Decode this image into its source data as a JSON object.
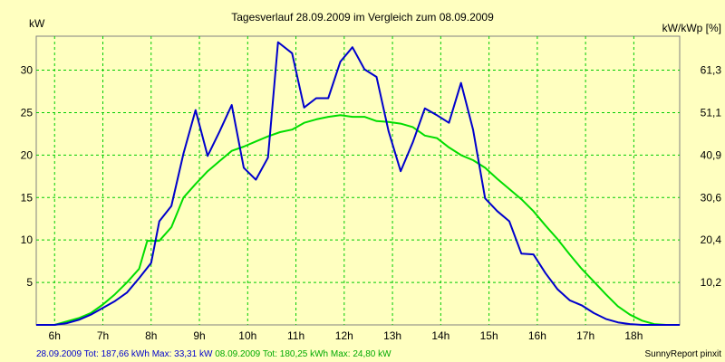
{
  "chart_data": {
    "type": "line",
    "title": "Tagesverlauf 28.09.2009 im Vergleich zum 08.09.2009",
    "ylabel_left": "kW",
    "ylabel_right": "kW/kWp [%]",
    "x_unit": "h",
    "xlim": [
      5.62,
      18.95
    ],
    "ylim": [
      0,
      34
    ],
    "x_ticks": [
      6,
      7,
      8,
      9,
      10,
      11,
      12,
      13,
      14,
      15,
      16,
      17,
      18
    ],
    "x_tick_labels": [
      "6h",
      "7h",
      "8h",
      "9h",
      "10h",
      "11h",
      "12h",
      "13h",
      "14h",
      "15h",
      "16h",
      "17h",
      "18h"
    ],
    "y_ticks_left": [
      5,
      10,
      15,
      20,
      25,
      30
    ],
    "y_tick_labels_left": [
      "5",
      "10",
      "15",
      "20",
      "25",
      "30"
    ],
    "y_ticks_right": [
      5,
      10,
      15,
      20,
      25,
      30
    ],
    "y_tick_labels_right": [
      "10,2",
      "20,4",
      "30,6",
      "40,9",
      "51,1",
      "61,3"
    ],
    "grid": true,
    "series": [
      {
        "name": "28.09.2009",
        "color": "#0000cc",
        "summary": "Tot: 187,66 kWh Max: 33,31 kW",
        "x": [
          5.62,
          6.0,
          6.25,
          6.5,
          6.75,
          7.0,
          7.25,
          7.5,
          7.75,
          8.0,
          8.17,
          8.42,
          8.67,
          8.92,
          9.17,
          9.42,
          9.67,
          9.92,
          10.17,
          10.42,
          10.63,
          10.92,
          11.17,
          11.42,
          11.67,
          11.92,
          12.17,
          12.42,
          12.67,
          12.92,
          13.17,
          13.42,
          13.67,
          13.92,
          14.17,
          14.42,
          14.67,
          14.92,
          15.17,
          15.42,
          15.67,
          15.92,
          16.17,
          16.42,
          16.67,
          16.92,
          17.17,
          17.42,
          17.67,
          17.92,
          18.17,
          18.42,
          18.67,
          18.95
        ],
        "y": [
          0,
          0,
          0.2,
          0.6,
          1.2,
          2.0,
          2.8,
          3.8,
          5.5,
          7.3,
          12.2,
          14.0,
          20.2,
          25.3,
          19.9,
          22.8,
          25.9,
          18.5,
          17.1,
          19.7,
          33.3,
          32.0,
          25.6,
          26.7,
          26.7,
          31.0,
          32.7,
          30.1,
          29.2,
          22.8,
          18.1,
          21.5,
          25.5,
          24.7,
          23.8,
          28.5,
          23.0,
          14.9,
          13.4,
          12.2,
          8.4,
          8.3,
          6.1,
          4.2,
          2.9,
          2.3,
          1.4,
          0.7,
          0.3,
          0.1,
          0,
          0,
          0,
          0
        ]
      },
      {
        "name": "08.09.2009",
        "color": "#00dd00",
        "summary": "Tot: 180,25 kWh Max: 24,80 kW",
        "x": [
          5.62,
          6.0,
          6.25,
          6.5,
          6.75,
          7.0,
          7.25,
          7.5,
          7.75,
          7.92,
          8.17,
          8.42,
          8.67,
          8.92,
          9.17,
          9.42,
          9.67,
          9.92,
          10.17,
          10.42,
          10.67,
          10.92,
          11.17,
          11.42,
          11.67,
          11.92,
          12.17,
          12.42,
          12.67,
          12.92,
          13.17,
          13.42,
          13.67,
          13.92,
          14.17,
          14.42,
          14.67,
          14.92,
          15.17,
          15.42,
          15.67,
          15.92,
          16.17,
          16.42,
          16.67,
          16.92,
          17.17,
          17.42,
          17.67,
          17.92,
          18.17,
          18.42,
          18.67,
          18.95
        ],
        "y": [
          0,
          0,
          0.4,
          0.8,
          1.4,
          2.4,
          3.6,
          5.0,
          6.6,
          9.9,
          9.9,
          11.5,
          15.0,
          16.6,
          18.1,
          19.3,
          20.5,
          21.0,
          21.6,
          22.2,
          22.7,
          23.0,
          23.8,
          24.2,
          24.5,
          24.7,
          24.5,
          24.5,
          24.0,
          23.9,
          23.7,
          23.3,
          22.3,
          22.0,
          20.9,
          20.0,
          19.4,
          18.5,
          17.2,
          16.0,
          14.8,
          13.4,
          11.7,
          10.1,
          8.3,
          6.6,
          5.1,
          3.6,
          2.2,
          1.2,
          0.5,
          0.1,
          0,
          0
        ]
      }
    ],
    "credit": "SunnyReport pinxit"
  }
}
